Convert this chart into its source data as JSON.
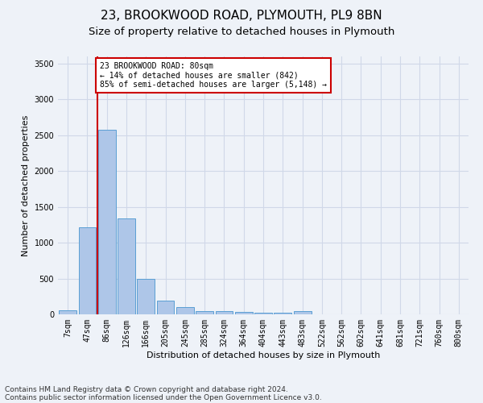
{
  "title1": "23, BROOKWOOD ROAD, PLYMOUTH, PL9 8BN",
  "title2": "Size of property relative to detached houses in Plymouth",
  "xlabel": "Distribution of detached houses by size in Plymouth",
  "ylabel": "Number of detached properties",
  "categories": [
    "7sqm",
    "47sqm",
    "86sqm",
    "126sqm",
    "166sqm",
    "205sqm",
    "245sqm",
    "285sqm",
    "324sqm",
    "364sqm",
    "404sqm",
    "443sqm",
    "483sqm",
    "522sqm",
    "562sqm",
    "602sqm",
    "641sqm",
    "681sqm",
    "721sqm",
    "760sqm",
    "800sqm"
  ],
  "bar_values": [
    55,
    1220,
    2580,
    1340,
    500,
    190,
    100,
    50,
    45,
    30,
    25,
    25,
    50,
    0,
    0,
    0,
    0,
    0,
    0,
    0,
    0
  ],
  "bar_color": "#aec6e8",
  "bar_edge_color": "#5a9fd4",
  "grid_color": "#d0d8e8",
  "background_color": "#eef2f8",
  "vline_x_index": 2,
  "vline_color": "#cc0000",
  "annotation_text": "23 BROOKWOOD ROAD: 80sqm\n← 14% of detached houses are smaller (842)\n85% of semi-detached houses are larger (5,148) →",
  "annotation_box_color": "#ffffff",
  "annotation_edge_color": "#cc0000",
  "ylim": [
    0,
    3600
  ],
  "yticks": [
    0,
    500,
    1000,
    1500,
    2000,
    2500,
    3000,
    3500
  ],
  "footer1": "Contains HM Land Registry data © Crown copyright and database right 2024.",
  "footer2": "Contains public sector information licensed under the Open Government Licence v3.0.",
  "title_fontsize": 11,
  "subtitle_fontsize": 9.5,
  "axis_label_fontsize": 8,
  "tick_fontsize": 7,
  "footer_fontsize": 6.5
}
